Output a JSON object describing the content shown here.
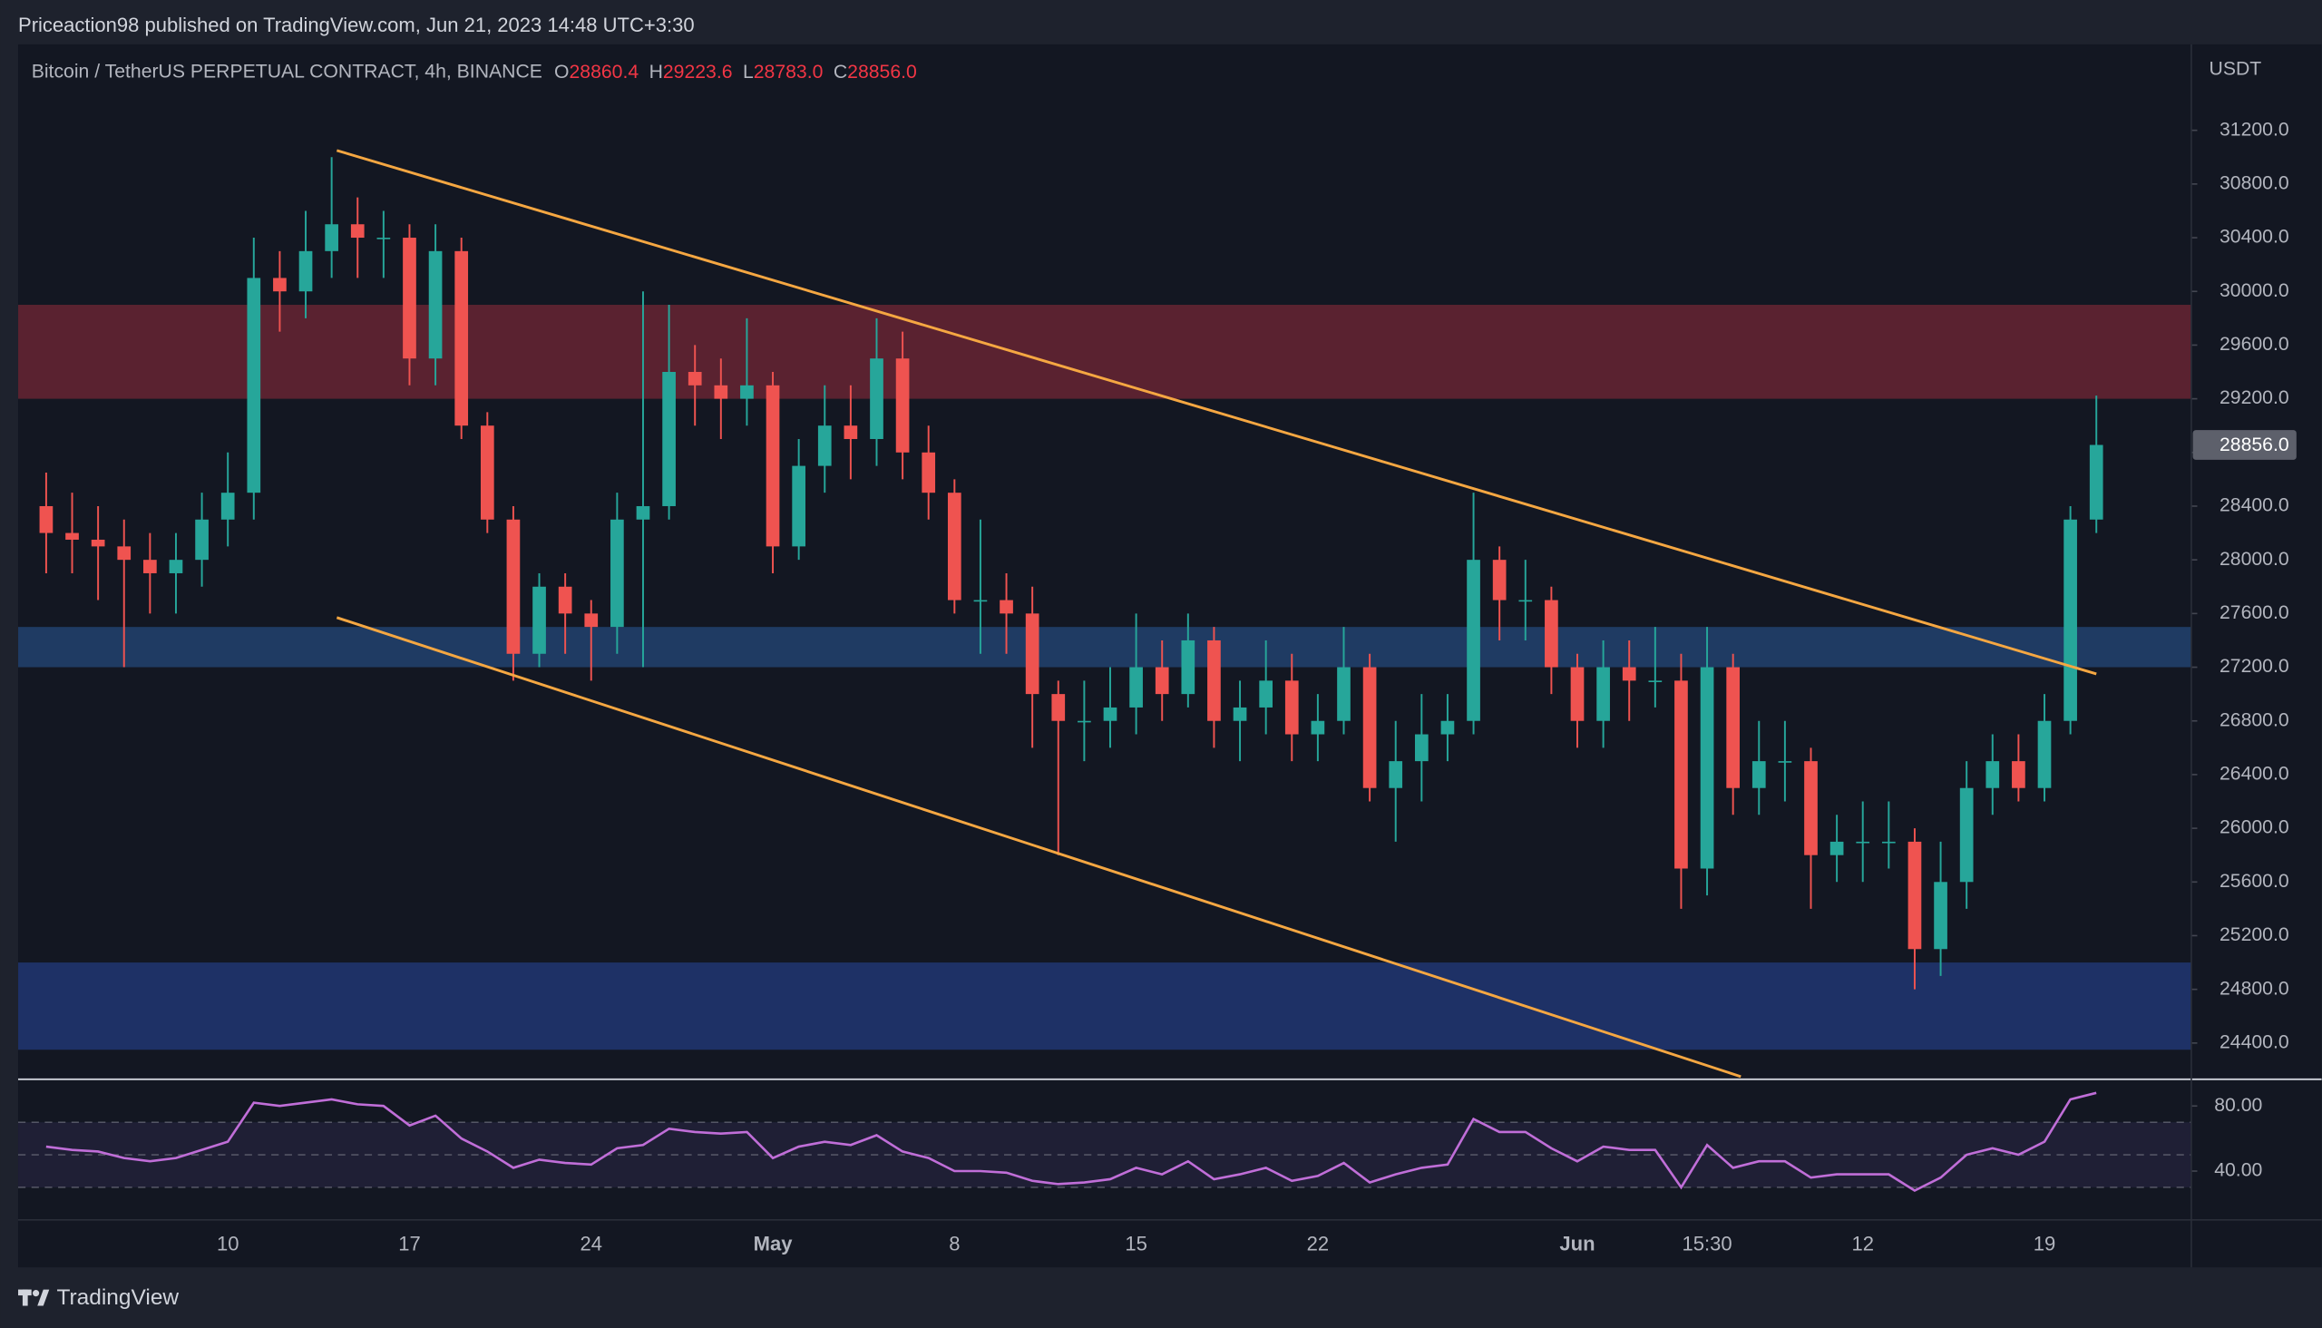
{
  "header": {
    "publisher": "Priceaction98 published on TradingView.com, Jun 21, 2023 14:48 UTC+3:30",
    "brand": "TradingView"
  },
  "chart_data": [
    {
      "type": "candlestick",
      "title": "Bitcoin / TetherUS PERPETUAL CONTRACT, 4h, BINANCE",
      "ohlc_legend": [
        {
          "prefix": "O",
          "value": 28860.4
        },
        {
          "prefix": "H",
          "value": 29223.6
        },
        {
          "prefix": "L",
          "value": 28783,
          "label": "28783.0"
        },
        {
          "prefix": "C",
          "value": 28856,
          "label": "28856.0"
        }
      ],
      "legend_color": "#f23645",
      "axis_unit": "USDT",
      "last_price": {
        "value": 28856,
        "label": "28856.0"
      },
      "up_color": "#26a69a",
      "down_color": "#ef5350",
      "categories": [
        null,
        null,
        null,
        null,
        null,
        null,
        null,
        "10",
        null,
        null,
        null,
        null,
        null,
        null,
        "17",
        null,
        null,
        null,
        null,
        null,
        null,
        "24",
        null,
        null,
        null,
        null,
        null,
        null,
        "May",
        null,
        null,
        null,
        null,
        null,
        null,
        "8",
        null,
        null,
        null,
        null,
        null,
        null,
        "15",
        null,
        null,
        null,
        null,
        null,
        null,
        "22",
        null,
        null,
        null,
        null,
        null,
        null,
        null,
        null,
        null,
        "Jun",
        null,
        null,
        null,
        null,
        "15:30",
        null,
        null,
        null,
        null,
        null,
        "12",
        null,
        null,
        null,
        null,
        null,
        null,
        "19",
        null,
        null
      ],
      "open": [
        28400,
        28200,
        28150,
        28100,
        28000,
        27900,
        28000,
        28300,
        28500,
        30100,
        30000,
        30300,
        30500,
        30400,
        30400,
        29500,
        30300,
        29000,
        28300,
        27300,
        27800,
        27600,
        27500,
        28300,
        28400,
        29400,
        29300,
        29200,
        29300,
        28100,
        28700,
        29000,
        28900,
        29500,
        28800,
        28500,
        27700,
        27700,
        27600,
        27000,
        26800,
        26800,
        26900,
        27200,
        27000,
        27400,
        26800,
        26900,
        27100,
        26700,
        26800,
        27200,
        26300,
        26500,
        26700,
        26800,
        28000,
        27700,
        27700,
        27200,
        26800,
        27200,
        27100,
        27100,
        25700,
        27200,
        26300,
        26500,
        26500,
        25800,
        25900,
        25900,
        25900,
        25100,
        25600,
        26300,
        26500,
        26300,
        26800,
        28300
      ],
      "high": [
        28650,
        28500,
        28400,
        28300,
        28200,
        28200,
        28500,
        28800,
        30400,
        30300,
        30600,
        31000,
        30700,
        30600,
        30500,
        30500,
        30400,
        29100,
        28400,
        27900,
        27900,
        27700,
        28500,
        30000,
        29900,
        29600,
        29500,
        29800,
        29400,
        28900,
        29300,
        29300,
        29800,
        29700,
        29000,
        28600,
        28300,
        27900,
        27800,
        27100,
        27100,
        27200,
        27600,
        27400,
        27600,
        27500,
        27100,
        27400,
        27300,
        27000,
        27500,
        27300,
        26800,
        27000,
        27000,
        28500,
        28100,
        28000,
        27800,
        27300,
        27400,
        27400,
        27500,
        27300,
        27500,
        27300,
        26800,
        26800,
        26600,
        26100,
        26200,
        26200,
        26000,
        25900,
        26500,
        26700,
        26700,
        27000,
        28400,
        29223.6
      ],
      "low": [
        27900,
        27900,
        27700,
        27200,
        27600,
        27600,
        27800,
        28100,
        28300,
        29700,
        29800,
        30100,
        30100,
        30100,
        29300,
        29300,
        28900,
        28200,
        27100,
        27200,
        27300,
        27100,
        27300,
        27200,
        28300,
        29000,
        28900,
        29000,
        27900,
        28000,
        28500,
        28600,
        28700,
        28600,
        28300,
        27600,
        27300,
        27300,
        26600,
        25800,
        26500,
        26600,
        26700,
        26800,
        26900,
        26600,
        26500,
        26700,
        26500,
        26500,
        26700,
        26200,
        25900,
        26200,
        26500,
        26700,
        27400,
        27400,
        27000,
        26600,
        26600,
        26800,
        26900,
        25400,
        25500,
        26100,
        26100,
        26200,
        25400,
        25600,
        25600,
        25700,
        24800,
        24900,
        25400,
        26100,
        26200,
        26200,
        26700,
        28200
      ],
      "close": [
        28200,
        28150,
        28100,
        28000,
        27900,
        28000,
        28300,
        28500,
        30100,
        30000,
        30300,
        30500,
        30400,
        30400,
        29500,
        30300,
        29000,
        28300,
        27300,
        27800,
        27600,
        27500,
        28300,
        28400,
        29400,
        29300,
        29200,
        29300,
        28100,
        28700,
        29000,
        28900,
        29500,
        28800,
        28500,
        27700,
        27700,
        27600,
        27000,
        26800,
        26800,
        26900,
        27200,
        27000,
        27400,
        26800,
        26900,
        27100,
        26700,
        26800,
        27200,
        26300,
        26500,
        26700,
        26800,
        28000,
        27700,
        27700,
        27200,
        26800,
        27200,
        27100,
        27100,
        25700,
        27200,
        26300,
        26500,
        26500,
        25800,
        25900,
        25900,
        25900,
        25100,
        25600,
        26300,
        26500,
        26300,
        26800,
        28300,
        28856
      ],
      "xlim": [
        -1.08,
        82.66
      ],
      "ylim": [
        24130,
        31840
      ],
      "yticks": [
        {
          "value": 24400,
          "label": "24400.0"
        },
        {
          "value": 24800,
          "label": "24800.0"
        },
        {
          "value": 25200,
          "label": "25200.0"
        },
        {
          "value": 25600,
          "label": "25600.0"
        },
        {
          "value": 26000,
          "label": "26000.0"
        },
        {
          "value": 26400,
          "label": "26400.0"
        },
        {
          "value": 26800,
          "label": "26800.0"
        },
        {
          "value": 27200,
          "label": "27200.0"
        },
        {
          "value": 27600,
          "label": "27600.0"
        },
        {
          "value": 28000,
          "label": "28000.0"
        },
        {
          "value": 28400,
          "label": "28400.0"
        },
        {
          "value": 28800,
          "label": "28800.0"
        },
        {
          "value": 29200,
          "label": "29200.0"
        },
        {
          "value": 29600,
          "label": "29600.0"
        },
        {
          "value": 30000,
          "label": "30000.0"
        },
        {
          "value": 30400,
          "label": "30400.0"
        },
        {
          "value": 30800,
          "label": "30800.0"
        },
        {
          "value": 31200,
          "label": "31200.0"
        }
      ],
      "zones": [
        {
          "range": [
            29200,
            29900
          ],
          "color": "#5a2230"
        },
        {
          "range": [
            27200,
            27500
          ],
          "color": "#1f3b63"
        },
        {
          "range": [
            24350,
            25000
          ],
          "color": "#1e3166"
        }
      ],
      "trendlines": [
        {
          "x": [
            11.2,
            79
          ],
          "y": [
            31050,
            27150
          ],
          "color": "#f5a742"
        },
        {
          "x": [
            11.2,
            65.3
          ],
          "y": [
            27570,
            24150
          ],
          "color": "#f5a742"
        }
      ]
    },
    {
      "type": "line",
      "values": [
        55,
        53,
        52,
        48,
        46,
        48,
        53,
        58,
        82,
        80,
        82,
        84,
        81,
        80,
        68,
        74,
        60,
        52,
        42,
        47,
        45,
        44,
        54,
        56,
        66,
        64,
        63,
        64,
        48,
        55,
        58,
        56,
        62,
        52,
        48,
        40,
        40,
        39,
        34,
        32,
        33,
        35,
        42,
        38,
        46,
        35,
        38,
        42,
        34,
        37,
        45,
        33,
        38,
        42,
        44,
        72,
        64,
        64,
        54,
        46,
        55,
        53,
        53,
        30,
        56,
        42,
        46,
        46,
        36,
        38,
        38,
        38,
        28,
        36,
        50,
        54,
        50,
        58,
        84,
        88
      ],
      "color": "#c06ed8",
      "ylim": [
        10,
        96.4
      ],
      "yticks": [
        {
          "value": 80,
          "label": "80.00"
        },
        {
          "value": 40,
          "label": "40.00"
        }
      ],
      "levels": [
        70,
        50,
        30
      ],
      "band": [
        30,
        70
      ]
    }
  ]
}
